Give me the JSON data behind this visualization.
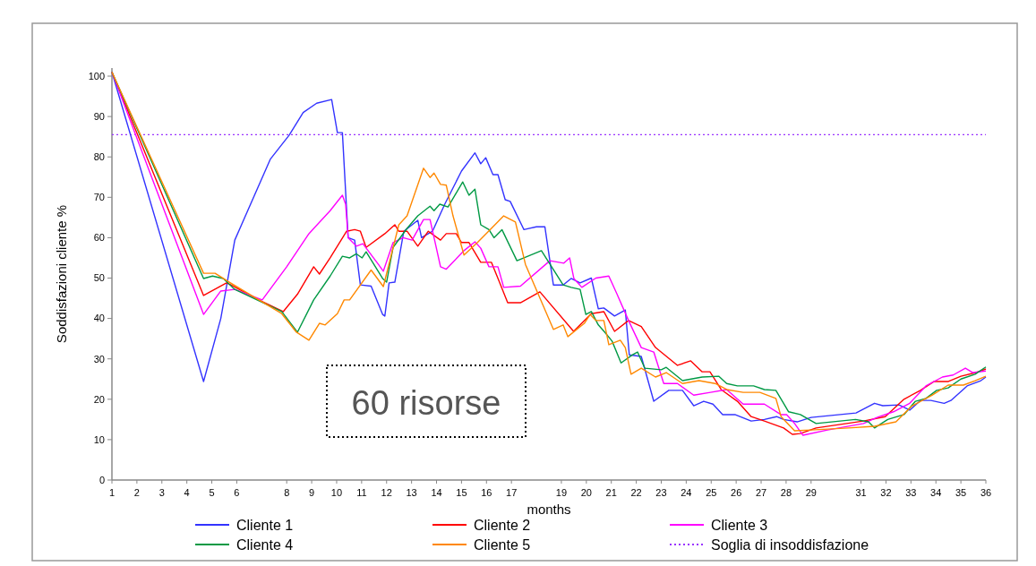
{
  "chart_data": {
    "type": "line",
    "ylabel": "Soddisfazioni cliente %",
    "xlabel": "months",
    "xlim": [
      1,
      36
    ],
    "ylim": [
      0,
      102
    ],
    "xticks": [
      1,
      2,
      3,
      4,
      5,
      6,
      8,
      9,
      10,
      11,
      12,
      13,
      14,
      15,
      16,
      17,
      19,
      20,
      21,
      22,
      23,
      24,
      25,
      26,
      27,
      28,
      29,
      31,
      32,
      33,
      34,
      35,
      36
    ],
    "yticks": [
      0,
      10,
      20,
      30,
      40,
      50,
      60,
      70,
      80,
      90,
      100
    ],
    "grid": false,
    "legend": "bottom",
    "line_style": "solid",
    "marker": "none",
    "annotations": [
      "60 risorse"
    ],
    "ref_lines": [
      {
        "axis": "y",
        "value": 85.5,
        "label": "Soglia di insoddisfazione",
        "color": "#9933ff",
        "line_style": "dotted"
      }
    ],
    "series": [
      {
        "name": "Cliente 1",
        "color": "#3333ff",
        "x": [
          1,
          4.67,
          5.36,
          5.92,
          7.34,
          8.1,
          8.66,
          9.2,
          9.8,
          10.03,
          10.23,
          10.46,
          10.72,
          10.95,
          11.38,
          11.84,
          11.93,
          12.1,
          12.33,
          12.69,
          13.25,
          13.4,
          13.84,
          14.33,
          15,
          15.54,
          15.77,
          15.97,
          16.26,
          16.46,
          16.75,
          16.95,
          17.5,
          18,
          18.34,
          18.68,
          19.07,
          19.39,
          19.75,
          20.2,
          20.48,
          20.7,
          21.13,
          21.56,
          21.72,
          22.2,
          22.7,
          23.3,
          23.85,
          24.3,
          24.7,
          25.07,
          25.46,
          25.95,
          26.6,
          27.13,
          27.62,
          27.9,
          28.44,
          29,
          30.8,
          31.54,
          31.87,
          32.52,
          32.95,
          33.38,
          33.8,
          34.33,
          34.6,
          35.25,
          35.8,
          36
        ],
        "values": [
          101,
          24.4,
          40,
          59.4,
          79.4,
          85.4,
          91,
          93.3,
          94.2,
          86,
          86,
          60,
          59.4,
          48.3,
          48,
          41,
          40.6,
          48.8,
          49,
          61.6,
          64.3,
          60,
          61.6,
          68.3,
          76.5,
          81,
          78.3,
          79.8,
          75.6,
          75.6,
          69.4,
          69,
          62,
          62.7,
          62.7,
          48.3,
          48.3,
          49.9,
          48.8,
          50,
          42.4,
          42.6,
          40.6,
          42.1,
          31,
          30.6,
          19.5,
          22.2,
          22.2,
          18.4,
          19.5,
          18.8,
          16.2,
          16.2,
          14.6,
          15,
          15.7,
          15,
          14.4,
          15.5,
          16.6,
          19,
          18.4,
          18.6,
          17.3,
          19.7,
          19.7,
          19,
          19.7,
          23.3,
          24.6,
          25.5
        ]
      },
      {
        "name": "Cliente 2",
        "color": "#ff0000",
        "x": [
          1,
          4.67,
          5.59,
          5.8,
          6.88,
          7.86,
          8.43,
          9.08,
          9.31,
          9.74,
          10.4,
          10.72,
          10.95,
          11.18,
          11.93,
          12.33,
          12.49,
          12.82,
          13.25,
          13.67,
          14.16,
          14.39,
          14.79,
          15,
          15.3,
          15.77,
          16.2,
          16.52,
          16.85,
          17.36,
          18.14,
          19.49,
          20.2,
          20.7,
          21.13,
          21.69,
          22.2,
          22.77,
          23.65,
          24.18,
          24.64,
          24.95,
          25.4,
          26.05,
          26.6,
          27.13,
          27.9,
          28.25,
          28.57,
          29.2,
          31.1,
          31.97,
          32.72,
          33.38,
          33.93,
          34.5,
          35,
          35.6,
          36
        ],
        "values": [
          101,
          45.7,
          48.8,
          48.2,
          44.6,
          41.7,
          46,
          52.8,
          51,
          55,
          61.6,
          62,
          61.6,
          57.6,
          61,
          63.2,
          61.6,
          61.6,
          57.9,
          61.6,
          59.4,
          61,
          61,
          58.8,
          58.8,
          53.9,
          53.9,
          49,
          43.9,
          43.9,
          46.6,
          36.8,
          41.2,
          41.7,
          36.8,
          39.5,
          38,
          32.8,
          28.4,
          29.5,
          26.8,
          26.8,
          22.4,
          19.5,
          15.7,
          14.6,
          12.9,
          11.3,
          11.5,
          12.9,
          14.6,
          15.7,
          20,
          22.2,
          24.4,
          24.4,
          25.7,
          26.6,
          27.5
        ]
      },
      {
        "name": "Cliente 3",
        "color": "#ff00ff",
        "x": [
          1,
          4.67,
          5.36,
          5.92,
          7.02,
          8,
          8.89,
          9.74,
          10.23,
          10.36,
          10.46,
          10.79,
          11.05,
          11.67,
          11.87,
          12.26,
          12.66,
          13.02,
          13.48,
          13.74,
          14.16,
          14.39,
          15.1,
          15.54,
          15.77,
          16.1,
          16.46,
          16.69,
          17.36,
          18.54,
          19.1,
          19.33,
          19.5,
          19.82,
          20.38,
          20.9,
          21.23,
          21.69,
          22.2,
          22.7,
          23.1,
          23.65,
          24.3,
          24.97,
          25.62,
          26.28,
          27.13,
          27.79,
          28.02,
          28.34,
          28.67,
          29.66,
          31.1,
          31.64,
          32.3,
          32.95,
          33.6,
          34.26,
          34.69,
          35.18,
          35.48,
          36
        ],
        "values": [
          101,
          41,
          46.8,
          47.2,
          44.6,
          52.8,
          61,
          66.7,
          70.5,
          68.3,
          60,
          57.9,
          58.5,
          53.4,
          51.7,
          58.8,
          60,
          59.4,
          64.5,
          64.5,
          52.8,
          52.2,
          56.8,
          59,
          57.4,
          52.8,
          52.8,
          47.7,
          48,
          54.3,
          53.7,
          55,
          49.9,
          47.7,
          50,
          50.5,
          46,
          39.5,
          32.8,
          31.7,
          23.9,
          23.9,
          21,
          21.7,
          22.4,
          18.8,
          18.8,
          16.2,
          16.2,
          14,
          11.1,
          12.4,
          14,
          15.5,
          16.9,
          19,
          23.3,
          25.5,
          26,
          27.7,
          26.6,
          27
        ]
      },
      {
        "name": "Cliente 4",
        "color": "#009944",
        "x": [
          1,
          4.67,
          5.03,
          5.46,
          5.92,
          7.8,
          8.43,
          9.08,
          9.74,
          10.23,
          10.52,
          10.79,
          11.02,
          11.18,
          11.84,
          12,
          12.26,
          12.82,
          13.25,
          13.74,
          13.9,
          14.13,
          14.46,
          15.05,
          15.3,
          15.54,
          15.77,
          16.1,
          16.3,
          16.62,
          17.22,
          18.2,
          19.07,
          19.39,
          19.75,
          19.98,
          20.2,
          20.48,
          20.74,
          21.03,
          21.39,
          21.85,
          22.05,
          22.34,
          23,
          23.2,
          23.85,
          24.64,
          25.3,
          25.62,
          26.05,
          26.7,
          27.13,
          27.59,
          27.9,
          28.1,
          28.57,
          29.2,
          30.78,
          31.3,
          31.54,
          32.07,
          32.72,
          33.18,
          33.6,
          34.03,
          34.49,
          35,
          35.57,
          36
        ],
        "values": [
          101,
          49.9,
          50.5,
          49.9,
          47.2,
          41.7,
          36.6,
          44.6,
          50.5,
          55.4,
          55,
          56,
          55,
          56.5,
          49.9,
          49,
          57.6,
          62.3,
          65.4,
          67.8,
          66.7,
          68.3,
          67.6,
          73.8,
          70.5,
          72,
          63.2,
          62,
          60,
          62,
          54.3,
          56.8,
          48.3,
          47.7,
          47.2,
          41,
          41.7,
          38.4,
          36.6,
          34.4,
          29,
          31,
          31.7,
          27.7,
          27.3,
          27.9,
          24.6,
          25.5,
          25.7,
          23.9,
          23.3,
          23.3,
          22.4,
          22.2,
          19,
          16.9,
          16.2,
          14,
          15,
          14.4,
          12.9,
          15,
          16.2,
          19.5,
          20.2,
          22.2,
          22.8,
          25,
          26.2,
          28
        ]
      },
      {
        "name": "Cliente 5",
        "color": "#ff8800",
        "x": [
          1,
          4.67,
          5.13,
          5.59,
          7.8,
          8.39,
          8.89,
          9.31,
          9.54,
          10.03,
          10.3,
          10.52,
          11.38,
          11.87,
          12.49,
          12.82,
          13.48,
          13.74,
          13.9,
          14.16,
          14.39,
          14.66,
          15.1,
          15.64,
          16.69,
          17.16,
          17.56,
          18.68,
          19.07,
          19.26,
          19.92,
          20.15,
          20.38,
          20.7,
          20.9,
          21.36,
          21.56,
          21.79,
          22.2,
          22.77,
          23.2,
          23.85,
          24.51,
          25.16,
          25.62,
          26.28,
          26.95,
          27.59,
          27.8,
          28.34,
          29,
          30.5,
          31.54,
          32.4,
          33.05,
          33.84,
          34.49,
          35.1,
          35.57,
          36
        ],
        "values": [
          101,
          51.2,
          51.2,
          49.4,
          41.2,
          36.6,
          34.6,
          38.8,
          38.4,
          41.2,
          44.6,
          44.6,
          52,
          47.9,
          63.2,
          65.4,
          77.2,
          74.9,
          76,
          73.2,
          73,
          65.4,
          55.7,
          58.8,
          65.4,
          63.9,
          53.4,
          37.3,
          38.4,
          35.5,
          38.8,
          41,
          39.5,
          39.5,
          33.5,
          34.6,
          32.8,
          26.2,
          27.7,
          25.5,
          26.6,
          23.9,
          24.6,
          23.9,
          22.4,
          21.7,
          21.7,
          20.2,
          15.7,
          12.2,
          12.4,
          12.9,
          13.3,
          14.4,
          18.4,
          21,
          23.5,
          23.5,
          24.6,
          25.7
        ]
      }
    ]
  }
}
